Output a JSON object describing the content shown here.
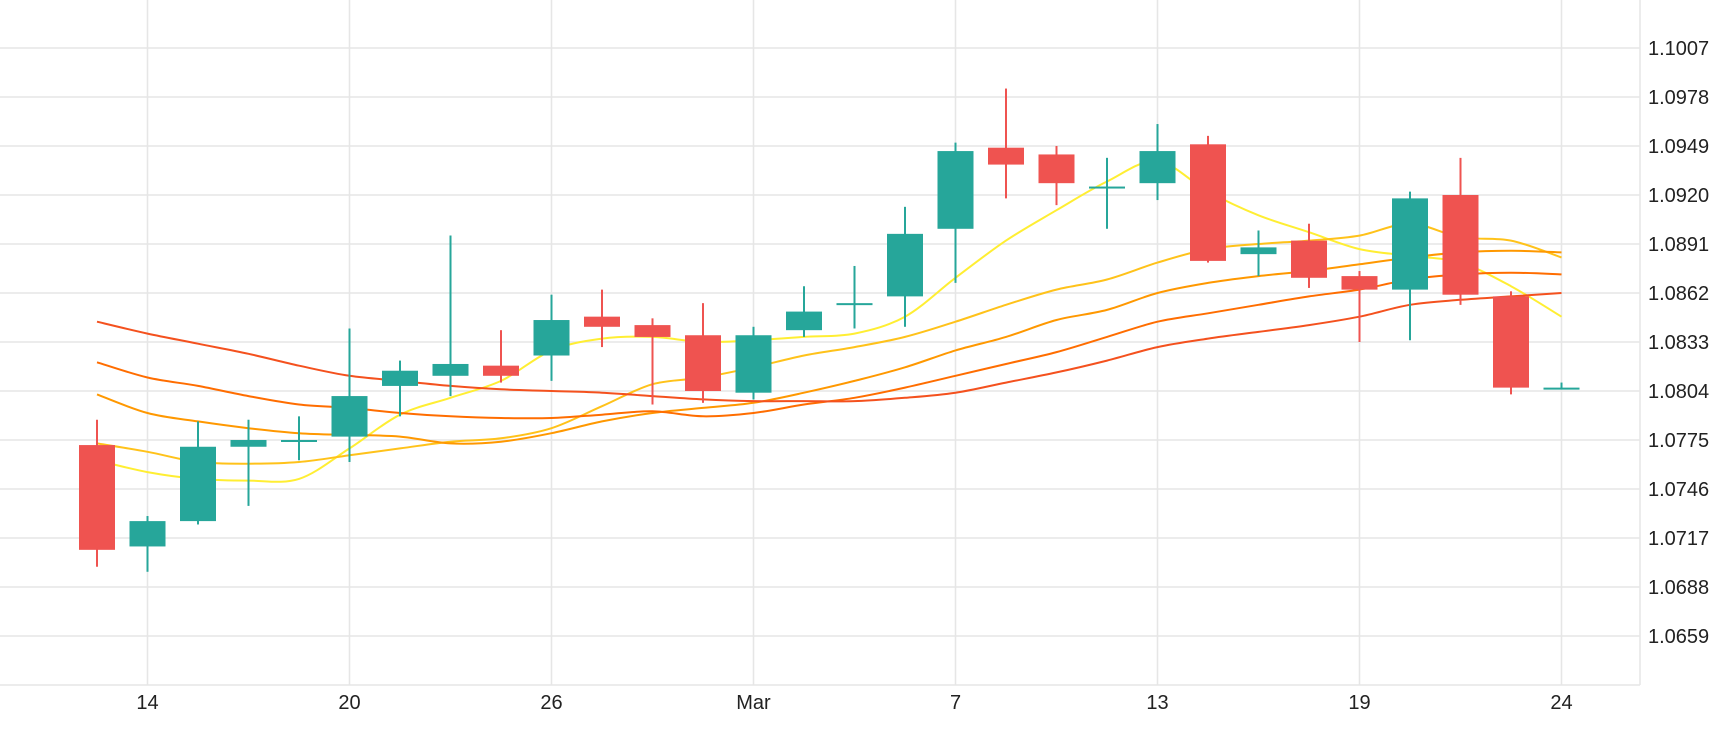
{
  "chart_data": {
    "type": "candlestick",
    "x_tick_labels": [
      {
        "label": "14",
        "index": 1
      },
      {
        "label": "20",
        "index": 5
      },
      {
        "label": "26",
        "index": 9
      },
      {
        "label": "Mar",
        "index": 13
      },
      {
        "label": "7",
        "index": 17
      },
      {
        "label": "13",
        "index": 21
      },
      {
        "label": "19",
        "index": 25
      },
      {
        "label": "24",
        "index": 29
      }
    ],
    "y_ticks": [
      "1.1007",
      "1.0978",
      "1.0949",
      "1.0920",
      "1.0891",
      "1.0862",
      "1.0833",
      "1.0804",
      "1.0775",
      "1.0746",
      "1.0717",
      "1.0688",
      "1.0659"
    ],
    "ylim": [
      1.063,
      1.102
    ],
    "grid": true,
    "colors": {
      "up": "#26a69a",
      "down": "#ef5350",
      "grid": "#e6e6e6"
    },
    "candles": [
      {
        "o": 1.0772,
        "h": 1.0787,
        "l": 1.07,
        "c": 1.071
      },
      {
        "o": 1.0712,
        "h": 1.073,
        "l": 1.0697,
        "c": 1.0727
      },
      {
        "o": 1.0727,
        "h": 1.0786,
        "l": 1.0725,
        "c": 1.0771
      },
      {
        "o": 1.0771,
        "h": 1.0787,
        "l": 1.0736,
        "c": 1.0775
      },
      {
        "o": 1.0774,
        "h": 1.0789,
        "l": 1.0763,
        "c": 1.0775
      },
      {
        "o": 1.0777,
        "h": 1.0841,
        "l": 1.0762,
        "c": 1.0801
      },
      {
        "o": 1.0807,
        "h": 1.0822,
        "l": 1.0789,
        "c": 1.0816
      },
      {
        "o": 1.0813,
        "h": 1.0896,
        "l": 1.0801,
        "c": 1.082
      },
      {
        "o": 1.0819,
        "h": 1.084,
        "l": 1.0809,
        "c": 1.0813
      },
      {
        "o": 1.0825,
        "h": 1.0861,
        "l": 1.081,
        "c": 1.0846
      },
      {
        "o": 1.0848,
        "h": 1.0864,
        "l": 1.083,
        "c": 1.0842
      },
      {
        "o": 1.0843,
        "h": 1.0847,
        "l": 1.0796,
        "c": 1.0836
      },
      {
        "o": 1.0837,
        "h": 1.0856,
        "l": 1.0797,
        "c": 1.0804
      },
      {
        "o": 1.0803,
        "h": 1.0842,
        "l": 1.0799,
        "c": 1.0837
      },
      {
        "o": 1.084,
        "h": 1.0866,
        "l": 1.0836,
        "c": 1.0851
      },
      {
        "o": 1.0856,
        "h": 1.0878,
        "l": 1.0841,
        "c": 1.0856
      },
      {
        "o": 1.086,
        "h": 1.0913,
        "l": 1.0842,
        "c": 1.0897
      },
      {
        "o": 1.09,
        "h": 1.0951,
        "l": 1.0868,
        "c": 1.0946
      },
      {
        "o": 1.0948,
        "h": 1.0983,
        "l": 1.0918,
        "c": 1.0938
      },
      {
        "o": 1.0944,
        "h": 1.0949,
        "l": 1.0914,
        "c": 1.0927
      },
      {
        "o": 1.0925,
        "h": 1.0942,
        "l": 1.09,
        "c": 1.0925
      },
      {
        "o": 1.0927,
        "h": 1.0962,
        "l": 1.0917,
        "c": 1.0946
      },
      {
        "o": 1.095,
        "h": 1.0955,
        "l": 1.088,
        "c": 1.0881
      },
      {
        "o": 1.0885,
        "h": 1.0899,
        "l": 1.0872,
        "c": 1.0889
      },
      {
        "o": 1.0893,
        "h": 1.0903,
        "l": 1.0865,
        "c": 1.0871
      },
      {
        "o": 1.0872,
        "h": 1.0875,
        "l": 1.0833,
        "c": 1.0864
      },
      {
        "o": 1.0864,
        "h": 1.0922,
        "l": 1.0834,
        "c": 1.0918
      },
      {
        "o": 1.092,
        "h": 1.0942,
        "l": 1.0855,
        "c": 1.0861
      },
      {
        "o": 1.086,
        "h": 1.0863,
        "l": 1.0802,
        "c": 1.0806
      },
      {
        "o": 1.0806,
        "h": 1.0809,
        "l": 1.0805,
        "c": 1.0806
      }
    ],
    "moving_averages": [
      {
        "color": "#ffee33",
        "points": [
          [
            0,
            1.0763
          ],
          [
            1,
            1.0756
          ],
          [
            2,
            1.0752
          ],
          [
            3,
            1.0751
          ],
          [
            4,
            1.0752
          ],
          [
            5,
            1.077
          ],
          [
            6,
            1.079
          ],
          [
            7,
            1.08
          ],
          [
            8,
            1.081
          ],
          [
            9,
            1.0828
          ],
          [
            10,
            1.0835
          ],
          [
            11,
            1.0836
          ],
          [
            12,
            1.0833
          ],
          [
            13,
            1.0834
          ],
          [
            14,
            1.0836
          ],
          [
            15,
            1.0838
          ],
          [
            16,
            1.0848
          ],
          [
            17,
            1.0871
          ],
          [
            18,
            1.0893
          ],
          [
            19,
            1.0911
          ],
          [
            20,
            1.0928
          ],
          [
            21,
            1.094
          ],
          [
            22,
            1.0922
          ],
          [
            23,
            1.0908
          ],
          [
            24,
            1.0898
          ],
          [
            25,
            1.0888
          ],
          [
            26,
            1.0884
          ],
          [
            27,
            1.088
          ],
          [
            28,
            1.0866
          ],
          [
            29,
            1.0848
          ]
        ]
      },
      {
        "color": "#ffc21a",
        "points": [
          [
            0,
            1.0773
          ],
          [
            1,
            1.0768
          ],
          [
            2,
            1.0762
          ],
          [
            3,
            1.0761
          ],
          [
            4,
            1.0762
          ],
          [
            5,
            1.0766
          ],
          [
            6,
            1.077
          ],
          [
            7,
            1.0774
          ],
          [
            8,
            1.0776
          ],
          [
            9,
            1.0782
          ],
          [
            10,
            1.0795
          ],
          [
            11,
            1.0808
          ],
          [
            12,
            1.0812
          ],
          [
            13,
            1.0818
          ],
          [
            14,
            1.0825
          ],
          [
            15,
            1.083
          ],
          [
            16,
            1.0836
          ],
          [
            17,
            1.0845
          ],
          [
            18,
            1.0855
          ],
          [
            19,
            1.0864
          ],
          [
            20,
            1.087
          ],
          [
            21,
            1.088
          ],
          [
            22,
            1.0888
          ],
          [
            23,
            1.0891
          ],
          [
            24,
            1.0893
          ],
          [
            25,
            1.0896
          ],
          [
            26,
            1.0903
          ],
          [
            27,
            1.0895
          ],
          [
            28,
            1.0893
          ],
          [
            29,
            1.0883
          ]
        ]
      },
      {
        "color": "#ff9800",
        "points": [
          [
            0,
            1.0802
          ],
          [
            1,
            1.0791
          ],
          [
            2,
            1.0786
          ],
          [
            3,
            1.0782
          ],
          [
            4,
            1.0779
          ],
          [
            5,
            1.0778
          ],
          [
            6,
            1.0777
          ],
          [
            7,
            1.0773
          ],
          [
            8,
            1.0774
          ],
          [
            9,
            1.0779
          ],
          [
            10,
            1.0786
          ],
          [
            11,
            1.0791
          ],
          [
            12,
            1.0794
          ],
          [
            13,
            1.0797
          ],
          [
            14,
            1.0803
          ],
          [
            15,
            1.081
          ],
          [
            16,
            1.0818
          ],
          [
            17,
            1.0828
          ],
          [
            18,
            1.0836
          ],
          [
            19,
            1.0846
          ],
          [
            20,
            1.0852
          ],
          [
            21,
            1.0862
          ],
          [
            22,
            1.0868
          ],
          [
            23,
            1.0872
          ],
          [
            24,
            1.0875
          ],
          [
            25,
            1.0879
          ],
          [
            26,
            1.0883
          ],
          [
            27,
            1.0886
          ],
          [
            28,
            1.0887
          ],
          [
            29,
            1.0886
          ]
        ]
      },
      {
        "color": "#ff6d00",
        "points": [
          [
            0,
            1.0821
          ],
          [
            1,
            1.0812
          ],
          [
            2,
            1.0807
          ],
          [
            3,
            1.0801
          ],
          [
            4,
            1.0796
          ],
          [
            5,
            1.0794
          ],
          [
            6,
            1.0791
          ],
          [
            7,
            1.0789
          ],
          [
            8,
            1.0788
          ],
          [
            9,
            1.0788
          ],
          [
            10,
            1.079
          ],
          [
            11,
            1.0792
          ],
          [
            12,
            1.0789
          ],
          [
            13,
            1.0791
          ],
          [
            14,
            1.0796
          ],
          [
            15,
            1.08
          ],
          [
            16,
            1.0806
          ],
          [
            17,
            1.0813
          ],
          [
            18,
            1.082
          ],
          [
            19,
            1.0827
          ],
          [
            20,
            1.0836
          ],
          [
            21,
            1.0845
          ],
          [
            22,
            1.085
          ],
          [
            23,
            1.0855
          ],
          [
            24,
            1.086
          ],
          [
            25,
            1.0864
          ],
          [
            26,
            1.087
          ],
          [
            27,
            1.0873
          ],
          [
            28,
            1.0874
          ],
          [
            29,
            1.0873
          ]
        ]
      },
      {
        "color": "#f4511e",
        "points": [
          [
            0,
            1.0845
          ],
          [
            1,
            1.0838
          ],
          [
            2,
            1.0832
          ],
          [
            3,
            1.0826
          ],
          [
            4,
            1.0819
          ],
          [
            5,
            1.0813
          ],
          [
            6,
            1.081
          ],
          [
            7,
            1.0807
          ],
          [
            8,
            1.0805
          ],
          [
            9,
            1.0804
          ],
          [
            10,
            1.0803
          ],
          [
            11,
            1.0801
          ],
          [
            12,
            1.0799
          ],
          [
            13,
            1.0798
          ],
          [
            14,
            1.0798
          ],
          [
            15,
            1.0798
          ],
          [
            16,
            1.08
          ],
          [
            17,
            1.0803
          ],
          [
            18,
            1.0809
          ],
          [
            19,
            1.0815
          ],
          [
            20,
            1.0822
          ],
          [
            21,
            1.083
          ],
          [
            22,
            1.0835
          ],
          [
            23,
            1.0839
          ],
          [
            24,
            1.0843
          ],
          [
            25,
            1.0848
          ],
          [
            26,
            1.0855
          ],
          [
            27,
            1.0858
          ],
          [
            28,
            1.086
          ],
          [
            29,
            1.0862
          ]
        ]
      }
    ]
  }
}
